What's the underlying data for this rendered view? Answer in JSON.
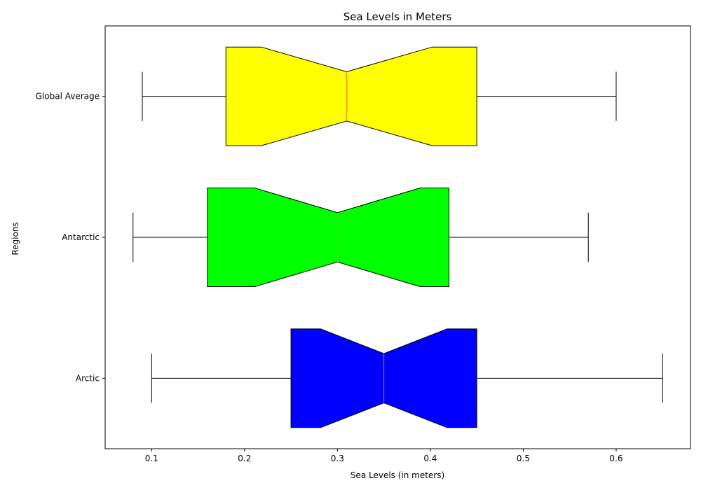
{
  "chart_data": {
    "type": "box",
    "orientation": "horizontal",
    "notched": true,
    "title": "Sea Levels in Meters",
    "xlabel": "Sea Levels (in meters)",
    "ylabel": "Regions",
    "xlim": [
      0.05,
      0.68
    ],
    "xticks": [
      0.1,
      0.2,
      0.3,
      0.4,
      0.5,
      0.6
    ],
    "xtick_labels": [
      "0.1",
      "0.2",
      "0.3",
      "0.4",
      "0.5",
      "0.6"
    ],
    "categories": [
      "Arctic",
      "Antarctic",
      "Global Average"
    ],
    "series": [
      {
        "whisker_low": 0.1,
        "q1": 0.25,
        "median": 0.35,
        "q3": 0.45,
        "whisker_high": 0.65,
        "notch_low": 0.282,
        "notch_high": 0.418,
        "color": "#0000ff"
      },
      {
        "whisker_low": 0.08,
        "q1": 0.16,
        "median": 0.3,
        "q3": 0.42,
        "whisker_high": 0.57,
        "notch_low": 0.211,
        "notch_high": 0.389,
        "color": "#00ff00"
      },
      {
        "whisker_low": 0.09,
        "q1": 0.18,
        "median": 0.31,
        "q3": 0.45,
        "whisker_high": 0.6,
        "notch_low": 0.218,
        "notch_high": 0.402,
        "color": "#ffff00"
      }
    ],
    "median_color": "#ff7f0e",
    "grid": false,
    "legend": false
  }
}
